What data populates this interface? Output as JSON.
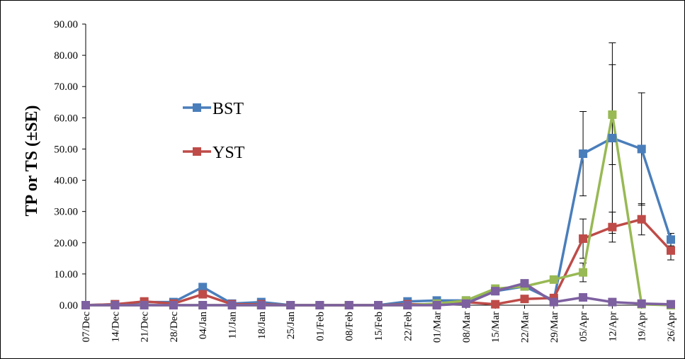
{
  "chart_data": {
    "type": "line",
    "title": "",
    "xlabel": "",
    "ylabel": "TP or TS (±SE)",
    "ylim": [
      0,
      90
    ],
    "yticks": [
      "0.00",
      "10.00",
      "20.00",
      "30.00",
      "40.00",
      "50.00",
      "60.00",
      "70.00",
      "80.00",
      "90.00"
    ],
    "grid": false,
    "legend_position": "upper-left",
    "categories": [
      "07/Dec",
      "14/Dec",
      "21/Dec",
      "28/Dec",
      "04/Jan",
      "11/Jan",
      "18/Jan",
      "25/Jan",
      "01/Feb",
      "08/Feb",
      "15/Feb",
      "22/Feb",
      "01/Mar",
      "08/Mar",
      "15/Mar",
      "22/Mar",
      "29/Mar",
      "05/Apr",
      "12/Apr",
      "19/Apr",
      "26/Apr"
    ],
    "series": [
      {
        "name": "BST",
        "color": "#4a7ebb",
        "legend": true,
        "values": [
          0,
          0.3,
          1.0,
          1.0,
          5.8,
          0.5,
          1.0,
          0,
          0,
          0,
          0,
          1.2,
          1.5,
          1.5,
          4.5,
          6.0,
          1.5,
          48.5,
          53.5,
          50.0,
          21.0
        ],
        "errors": [
          null,
          null,
          null,
          null,
          null,
          null,
          null,
          null,
          null,
          null,
          null,
          null,
          null,
          null,
          null,
          null,
          null,
          13.5,
          30.5,
          18.0,
          2.0
        ]
      },
      {
        "name": "YST",
        "color": "#be4b48",
        "legend": true,
        "values": [
          0,
          0.3,
          1.2,
          0.5,
          3.5,
          0.3,
          0.3,
          0,
          0,
          0,
          0,
          0.3,
          0.3,
          1.0,
          0.3,
          2.0,
          2.3,
          21.3,
          25.0,
          27.5,
          17.5
        ],
        "errors": [
          null,
          null,
          null,
          null,
          null,
          null,
          null,
          null,
          null,
          null,
          null,
          null,
          null,
          null,
          null,
          null,
          null,
          6.3,
          4.8,
          5.0,
          3.0
        ]
      },
      {
        "color": "#98b954",
        "legend": false,
        "values": [
          0,
          0,
          0,
          0,
          0,
          0,
          0,
          0,
          0,
          0,
          0,
          0,
          0.5,
          1.5,
          5.3,
          6.0,
          8.2,
          10.5,
          61.0,
          0.3,
          0.0
        ],
        "errors": [
          null,
          null,
          null,
          null,
          null,
          null,
          null,
          null,
          null,
          null,
          null,
          null,
          null,
          null,
          null,
          null,
          null,
          3.0,
          16.0,
          null,
          null
        ]
      },
      {
        "color": "#7d60a0",
        "legend": false,
        "values": [
          0,
          0,
          0,
          0,
          0,
          0,
          0,
          0,
          0,
          0,
          0,
          0,
          0,
          0.5,
          4.5,
          7.0,
          1.0,
          2.5,
          1.0,
          0.5,
          0.3
        ],
        "errors": [
          null,
          null,
          null,
          null,
          null,
          null,
          null,
          null,
          null,
          null,
          null,
          null,
          null,
          null,
          null,
          1.0,
          null,
          null,
          null,
          null,
          null
        ]
      }
    ]
  }
}
